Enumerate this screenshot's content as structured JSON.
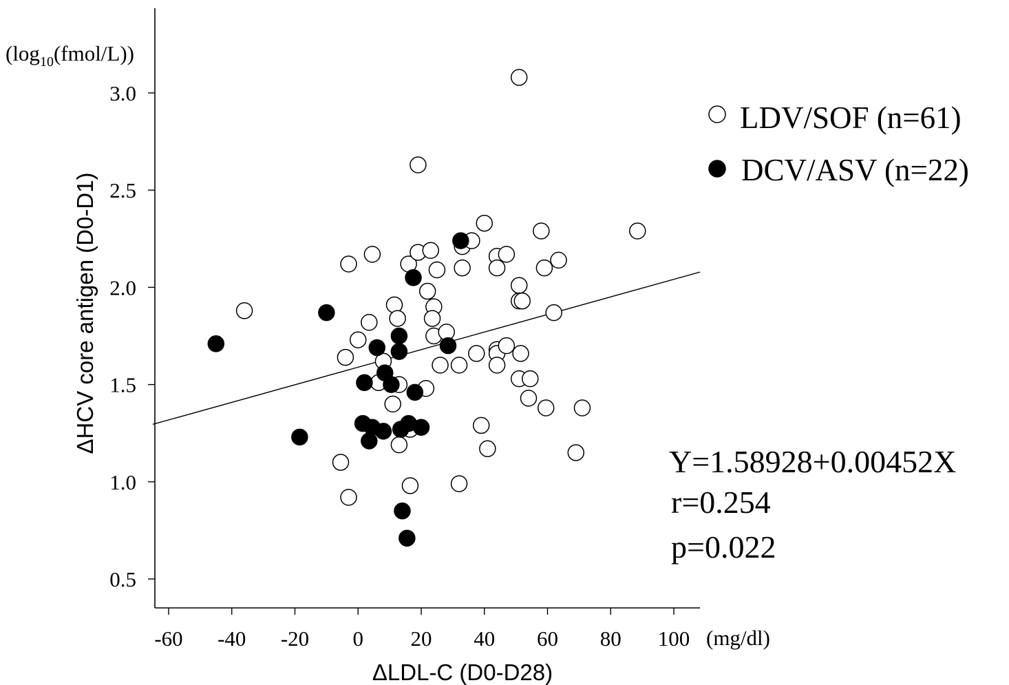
{
  "chart_data": {
    "type": "scatter",
    "xlabel": "ΔLDL-C (D0-D28)",
    "ylabel": "ΔHCV core antigen (D0-D1)",
    "x_unit": "(mg/dl)",
    "y_unit": {
      "prefix": "(log",
      "sub": "10",
      "suffix": "(fmol/L))"
    },
    "xlim": [
      -65,
      108
    ],
    "ylim": [
      0.35,
      3.45
    ],
    "xticks": [
      -60,
      -40,
      -20,
      0,
      20,
      40,
      60,
      80,
      100
    ],
    "yticks": [
      0.5,
      1.0,
      1.5,
      2.0,
      2.5,
      3.0
    ],
    "ytick_labels": [
      "0.5",
      "1.0",
      "1.5",
      "2.0",
      "2.5",
      "3.0"
    ],
    "grid": false,
    "legend_position": "top-right",
    "series": [
      {
        "name": "LDV/SOF (n=61)",
        "marker": "open-circle",
        "color": "#000000",
        "points": [
          [
            -36,
            1.88
          ],
          [
            -3,
            2.12
          ],
          [
            4.5,
            2.17
          ],
          [
            -4,
            1.64
          ],
          [
            0,
            1.73
          ],
          [
            3.5,
            1.82
          ],
          [
            -5.5,
            1.1
          ],
          [
            -3,
            0.92
          ],
          [
            6.5,
            1.51
          ],
          [
            8,
            1.62
          ],
          [
            11.5,
            1.91
          ],
          [
            12.5,
            1.84
          ],
          [
            13,
            1.5
          ],
          [
            11,
            1.4
          ],
          [
            13,
            1.19
          ],
          [
            16,
            2.12
          ],
          [
            19,
            2.18
          ],
          [
            19,
            2.63
          ],
          [
            23,
            2.19
          ],
          [
            25,
            2.09
          ],
          [
            22,
            1.98
          ],
          [
            24,
            1.9
          ],
          [
            23.5,
            1.84
          ],
          [
            24,
            1.75
          ],
          [
            28,
            1.77
          ],
          [
            26,
            1.6
          ],
          [
            21.5,
            1.48
          ],
          [
            16.5,
            1.27
          ],
          [
            16.5,
            0.98
          ],
          [
            33,
            2.21
          ],
          [
            33,
            2.1
          ],
          [
            36,
            2.24
          ],
          [
            40,
            2.33
          ],
          [
            32,
            1.6
          ],
          [
            37.5,
            1.66
          ],
          [
            39,
            1.29
          ],
          [
            41,
            1.17
          ],
          [
            32,
            0.99
          ],
          [
            44,
            2.16
          ],
          [
            47,
            2.17
          ],
          [
            44,
            2.1
          ],
          [
            51,
            2.01
          ],
          [
            51,
            1.93
          ],
          [
            52,
            1.93
          ],
          [
            44,
            1.68
          ],
          [
            44,
            1.66
          ],
          [
            47,
            1.7
          ],
          [
            44,
            1.6
          ],
          [
            51.5,
            1.66
          ],
          [
            51,
            1.53
          ],
          [
            54.5,
            1.53
          ],
          [
            54,
            1.43
          ],
          [
            51,
            3.08
          ],
          [
            58,
            2.29
          ],
          [
            59,
            2.1
          ],
          [
            63.5,
            2.14
          ],
          [
            62,
            1.87
          ],
          [
            59.5,
            1.38
          ],
          [
            71,
            1.38
          ],
          [
            69,
            1.15
          ],
          [
            88.5,
            2.29
          ]
        ]
      },
      {
        "name": "DCV/ASV (n=22)",
        "marker": "filled-circle",
        "color": "#000000",
        "points": [
          [
            -45,
            1.71
          ],
          [
            -10,
            1.87
          ],
          [
            -18.5,
            1.23
          ],
          [
            2,
            1.51
          ],
          [
            6,
            1.69
          ],
          [
            8.5,
            1.56
          ],
          [
            1.5,
            1.3
          ],
          [
            4.5,
            1.28
          ],
          [
            8,
            1.26
          ],
          [
            3.5,
            1.21
          ],
          [
            13,
            1.75
          ],
          [
            13,
            1.67
          ],
          [
            17.5,
            2.05
          ],
          [
            18,
            1.46
          ],
          [
            13.5,
            1.27
          ],
          [
            16,
            1.3
          ],
          [
            14,
            0.85
          ],
          [
            15.5,
            0.71
          ],
          [
            28.5,
            1.7
          ],
          [
            32.5,
            2.24
          ],
          [
            10.5,
            1.5
          ],
          [
            20,
            1.28
          ]
        ]
      }
    ],
    "regression": {
      "intercept": 1.58928,
      "slope": 0.00452,
      "x_range": [
        -65,
        108
      ]
    },
    "annotations": [
      "Y=1.58928+0.00452X",
      "r=0.254",
      "p=0.022"
    ]
  }
}
